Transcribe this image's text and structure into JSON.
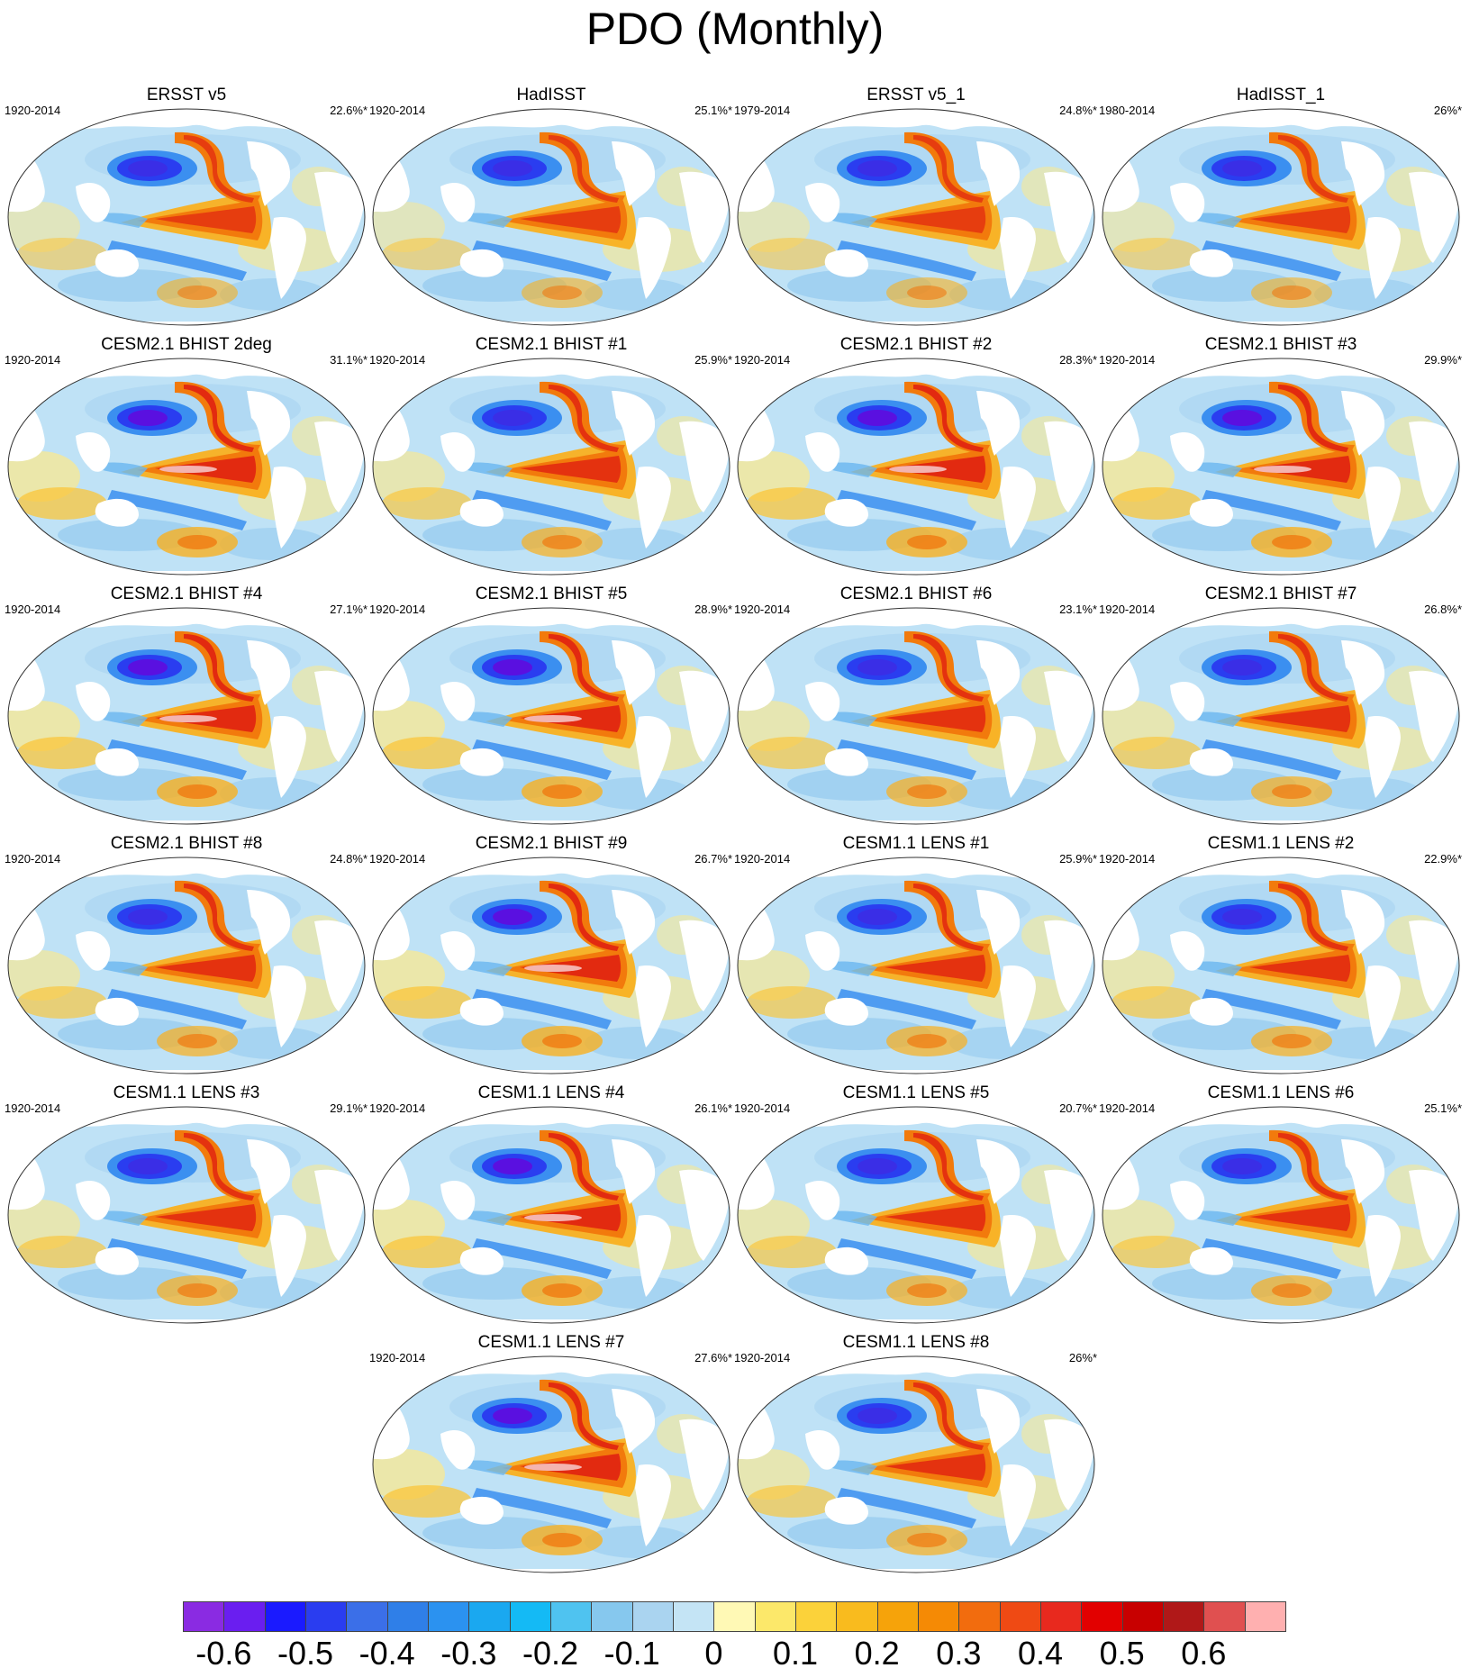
{
  "title": "PDO (Monthly)",
  "panels": [
    {
      "title": "ERSST v5",
      "period": "1920-2014",
      "pct": "22.6%*",
      "pattern": "obs"
    },
    {
      "title": "HadISST",
      "period": "1920-2014",
      "pct": "25.1%*",
      "pattern": "obs"
    },
    {
      "title": "ERSST v5_1",
      "period": "1979-2014",
      "pct": "24.8%*",
      "pattern": "obs"
    },
    {
      "title": "HadISST_1",
      "period": "1980-2014",
      "pct": "26%*",
      "pattern": "obs"
    },
    {
      "title": "CESM2.1 BHIST 2deg",
      "period": "1920-2014",
      "pct": "31.1%*",
      "pattern": "strong"
    },
    {
      "title": "CESM2.1 BHIST #1",
      "period": "1920-2014",
      "pct": "25.9%*",
      "pattern": "model"
    },
    {
      "title": "CESM2.1 BHIST #2",
      "period": "1920-2014",
      "pct": "28.3%*",
      "pattern": "strong"
    },
    {
      "title": "CESM2.1 BHIST #3",
      "period": "1920-2014",
      "pct": "29.9%*",
      "pattern": "strong"
    },
    {
      "title": "CESM2.1 BHIST #4",
      "period": "1920-2014",
      "pct": "27.1%*",
      "pattern": "strong"
    },
    {
      "title": "CESM2.1 BHIST #5",
      "period": "1920-2014",
      "pct": "28.9%*",
      "pattern": "strong"
    },
    {
      "title": "CESM2.1 BHIST #6",
      "period": "1920-2014",
      "pct": "23.1%*",
      "pattern": "model"
    },
    {
      "title": "CESM2.1 BHIST #7",
      "period": "1920-2014",
      "pct": "26.8%*",
      "pattern": "model"
    },
    {
      "title": "CESM2.1 BHIST #8",
      "period": "1920-2014",
      "pct": "24.8%*",
      "pattern": "model"
    },
    {
      "title": "CESM2.1 BHIST #9",
      "period": "1920-2014",
      "pct": "26.7%*",
      "pattern": "strong"
    },
    {
      "title": "CESM1.1 LENS #1",
      "period": "1920-2014",
      "pct": "25.9%*",
      "pattern": "model"
    },
    {
      "title": "CESM1.1 LENS #2",
      "period": "1920-2014",
      "pct": "22.9%*",
      "pattern": "model"
    },
    {
      "title": "CESM1.1 LENS #3",
      "period": "1920-2014",
      "pct": "29.1%*",
      "pattern": "model"
    },
    {
      "title": "CESM1.1 LENS #4",
      "period": "1920-2014",
      "pct": "26.1%*",
      "pattern": "strong"
    },
    {
      "title": "CESM1.1 LENS #5",
      "period": "1920-2014",
      "pct": "20.7%*",
      "pattern": "model"
    },
    {
      "title": "CESM1.1 LENS #6",
      "period": "1920-2014",
      "pct": "25.1%*",
      "pattern": "model"
    },
    {
      "title": "CESM1.1 LENS #7",
      "period": "1920-2014",
      "pct": "27.6%*",
      "pattern": "strong"
    },
    {
      "title": "CESM1.1 LENS #8",
      "period": "1920-2014",
      "pct": "26%*",
      "pattern": "model"
    }
  ],
  "colorbar": {
    "colors": [
      "#8a2be2",
      "#6a1ef0",
      "#1a1aff",
      "#2a3df0",
      "#3b6fe8",
      "#2f7fe8",
      "#2b92f0",
      "#1aa8f0",
      "#14baf5",
      "#4fc3f0",
      "#86c8ee",
      "#aad4f0",
      "#c4e4f5",
      "#fff9b5",
      "#fce86a",
      "#fbd23a",
      "#f9bb1e",
      "#f6a30a",
      "#f58a05",
      "#f26c0e",
      "#ef4a14",
      "#e8291e",
      "#e20000",
      "#c80000",
      "#b01818",
      "#e05050",
      "#ffb0b0"
    ],
    "labels": [
      "-0.6",
      "-0.5",
      "-0.4",
      "-0.3",
      "-0.2",
      "-0.1",
      "0",
      "0.1",
      "0.2",
      "0.3",
      "0.4",
      "0.5",
      "0.6"
    ]
  }
}
